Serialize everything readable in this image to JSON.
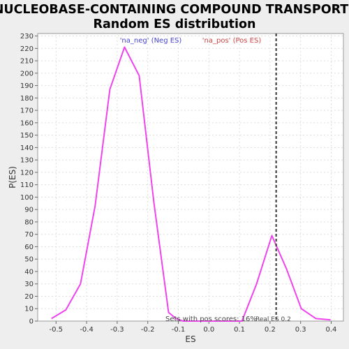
{
  "chart_data": {
    "type": "line",
    "title_lines": [
      "NUCLEOBASE-CONTAINING COMPOUND TRANSPORT:",
      "Random ES distribution"
    ],
    "xlabel": "ES",
    "ylabel": "P(ES)",
    "xlim": [
      -0.56,
      0.44
    ],
    "ylim": [
      0,
      232
    ],
    "xticks": [
      -0.5,
      -0.4,
      -0.3,
      -0.2,
      -0.1,
      0.0,
      0.1,
      0.2,
      0.3,
      0.4
    ],
    "xtick_labels": [
      "-0.5",
      "-0.4",
      "-0.3",
      "-0.2",
      "-0.1",
      "0.0",
      "0.1",
      "0.2",
      "0.3",
      "0.4"
    ],
    "yticks": [
      0,
      10,
      20,
      30,
      40,
      50,
      60,
      70,
      80,
      90,
      100,
      110,
      120,
      130,
      140,
      150,
      160,
      170,
      180,
      190,
      200,
      210,
      220,
      230
    ],
    "grid": true,
    "series": [
      {
        "color": "#ee44ee",
        "x": [
          -0.515,
          -0.468,
          -0.42,
          -0.372,
          -0.324,
          -0.276,
          -0.228,
          -0.18,
          -0.132,
          -0.108,
          -0.084,
          0.0,
          0.084,
          0.108,
          0.156,
          0.206,
          0.254,
          0.302,
          0.35,
          0.398
        ],
        "y": [
          2,
          9,
          30,
          93,
          187,
          221,
          198,
          96,
          7,
          2,
          0,
          0,
          0,
          0,
          30,
          69,
          42,
          10,
          2,
          1
        ]
      }
    ],
    "legend": {
      "placement": "top",
      "entries": [
        {
          "label": "'na_neg' (Neg ES)",
          "color": "#4444cc"
        },
        {
          "label": "'na_pos' (Pos ES)",
          "color": "#cc4444"
        }
      ]
    },
    "vline": {
      "x": 0.22,
      "style": "dashed",
      "color": "#333333"
    },
    "annotations": {
      "pos_scores": "Sets with pos scores: 16%",
      "real_es": "Real ES 0.2"
    }
  }
}
